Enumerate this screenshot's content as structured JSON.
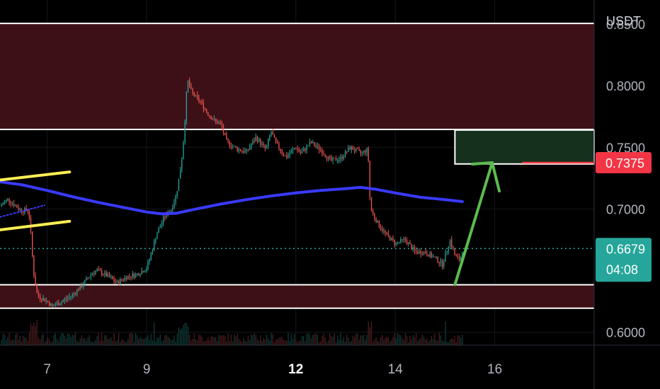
{
  "chart_data": {
    "type": "candlestick",
    "unit": "USDT",
    "y_ticks": [
      "0.6000",
      "0.7000",
      "0.7500",
      "0.8000",
      "0.8500"
    ],
    "x_ticks": [
      {
        "label": "7",
        "bold": false
      },
      {
        "label": "9",
        "bold": false
      },
      {
        "label": "12",
        "bold": true
      },
      {
        "label": "14",
        "bold": false
      },
      {
        "label": "16",
        "bold": false
      }
    ],
    "ylim": [
      0.5895,
      0.8695
    ],
    "x_day_range": [
      6.05,
      18.0
    ],
    "zones": [
      {
        "name": "upper-resistance-zone",
        "from": 0.7645,
        "to": 0.8505,
        "color": "#3c1016"
      },
      {
        "name": "lower-support-zone",
        "from": 0.6195,
        "to": 0.6385,
        "color": "#3c1016"
      }
    ],
    "target_box": {
      "from": 0.7365,
      "to": 0.764,
      "day_start": 15.2,
      "color": "#15301c"
    },
    "current_price": {
      "value": "0.6679",
      "countdown": "04:08",
      "color": "#26a69a"
    },
    "target_price": {
      "value": "0.7375",
      "color": "#f23645"
    },
    "moving_average": {
      "color": "#3a3aff",
      "points": [
        [
          6.05,
          0.722
        ],
        [
          6.5,
          0.7195
        ],
        [
          7.0,
          0.715
        ],
        [
          7.5,
          0.71
        ],
        [
          8.0,
          0.7055
        ],
        [
          8.5,
          0.7015
        ],
        [
          9.0,
          0.6975
        ],
        [
          9.3,
          0.696
        ],
        [
          9.6,
          0.6965
        ],
        [
          10.0,
          0.7
        ],
        [
          10.5,
          0.704
        ],
        [
          11.0,
          0.7075
        ],
        [
          11.5,
          0.7105
        ],
        [
          12.0,
          0.713
        ],
        [
          12.5,
          0.715
        ],
        [
          13.0,
          0.7165
        ],
        [
          13.3,
          0.7175
        ],
        [
          13.6,
          0.716
        ],
        [
          14.0,
          0.713
        ],
        [
          14.5,
          0.7095
        ],
        [
          15.0,
          0.7075
        ],
        [
          15.35,
          0.706
        ]
      ]
    },
    "price_path": [
      [
        6.05,
        0.702
      ],
      [
        6.2,
        0.708
      ],
      [
        6.35,
        0.703
      ],
      [
        6.5,
        0.698
      ],
      [
        6.6,
        0.7
      ],
      [
        6.65,
        0.692
      ],
      [
        6.72,
        0.65
      ],
      [
        6.8,
        0.63
      ],
      [
        7.0,
        0.625
      ],
      [
        7.1,
        0.621
      ],
      [
        7.3,
        0.625
      ],
      [
        7.5,
        0.63
      ],
      [
        7.7,
        0.638
      ],
      [
        7.9,
        0.648
      ],
      [
        8.0,
        0.65
      ],
      [
        8.2,
        0.646
      ],
      [
        8.4,
        0.64
      ],
      [
        8.6,
        0.645
      ],
      [
        8.8,
        0.647
      ],
      [
        9.0,
        0.652
      ],
      [
        9.1,
        0.665
      ],
      [
        9.2,
        0.68
      ],
      [
        9.35,
        0.693
      ],
      [
        9.5,
        0.7
      ],
      [
        9.6,
        0.712
      ],
      [
        9.7,
        0.738
      ],
      [
        9.75,
        0.76
      ],
      [
        9.82,
        0.805
      ],
      [
        9.9,
        0.795
      ],
      [
        10.0,
        0.79
      ],
      [
        10.1,
        0.786
      ],
      [
        10.2,
        0.779
      ],
      [
        10.35,
        0.772
      ],
      [
        10.5,
        0.768
      ],
      [
        10.6,
        0.755
      ],
      [
        10.8,
        0.749
      ],
      [
        11.0,
        0.746
      ],
      [
        11.2,
        0.758
      ],
      [
        11.4,
        0.748
      ],
      [
        11.5,
        0.763
      ],
      [
        11.6,
        0.753
      ],
      [
        11.8,
        0.742
      ],
      [
        12.0,
        0.75
      ],
      [
        12.1,
        0.745
      ],
      [
        12.3,
        0.754
      ],
      [
        12.5,
        0.748
      ],
      [
        12.7,
        0.739
      ],
      [
        12.9,
        0.741
      ],
      [
        13.1,
        0.75
      ],
      [
        13.3,
        0.745
      ],
      [
        13.45,
        0.748
      ],
      [
        13.5,
        0.7
      ],
      [
        13.65,
        0.688
      ],
      [
        13.8,
        0.68
      ],
      [
        14.0,
        0.672
      ],
      [
        14.2,
        0.675
      ],
      [
        14.4,
        0.665
      ],
      [
        14.6,
        0.665
      ],
      [
        14.8,
        0.66
      ],
      [
        14.95,
        0.655
      ],
      [
        15.1,
        0.675
      ],
      [
        15.2,
        0.662
      ],
      [
        15.3,
        0.658
      ],
      [
        15.35,
        0.667
      ]
    ],
    "support_line": {
      "color": "#ffee55",
      "points": [
        [
          6.05,
          0.6935
        ],
        [
          6.95,
          0.703
        ]
      ]
    },
    "lower_channel_line": {
      "color": "#ffee55",
      "points": [
        [
          6.05,
          0.6945
        ],
        [
          6.95,
          0.7015
        ]
      ]
    },
    "upper_channel_line": {
      "color": "#ffee55",
      "points": [
        [
          6.05,
          0.7235
        ],
        [
          7.45,
          0.73
        ]
      ]
    },
    "arrow": {
      "color": "#5dbb4f",
      "from": [
        15.2,
        0.6385
      ],
      "to": [
        15.95,
        0.7375
      ]
    }
  }
}
